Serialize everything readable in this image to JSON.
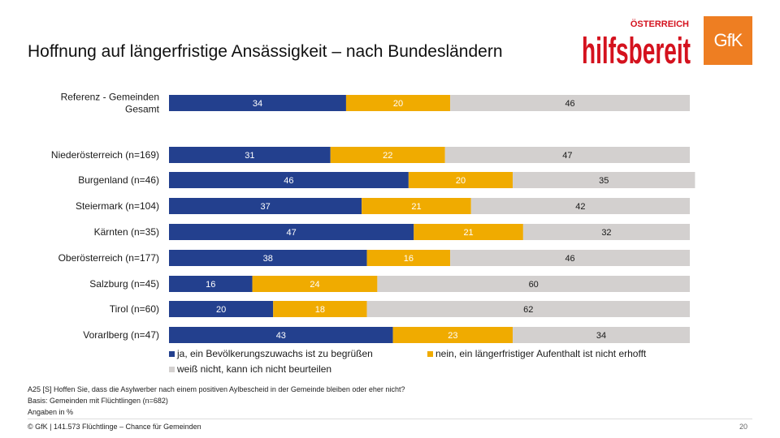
{
  "title": "Hoffnung auf längerfristige Ansässigkeit – nach Bundesländern",
  "logos": {
    "hilfsbereit_top": "ÖSTERREICH",
    "hilfsbereit_main": "hilfsbereit",
    "gfk": "GfK"
  },
  "notes": {
    "question": "A25 [S] Hoffen Sie, dass die Asylwerber nach einem positiven Aylbescheid in der Gemeinde bleiben oder eher nicht?",
    "basis": "Basis: Gemeinden mit Flüchtlingen (n=682)",
    "unit": "Angaben in %"
  },
  "footer": {
    "left": "© GfK | 141.573 Flüchtlinge – Chance für Gemeinden",
    "page": "20"
  },
  "colors": {
    "ja": "#23408e",
    "nein": "#f0ab00",
    "weiss": "#d3d0cf"
  },
  "chart_data": {
    "type": "bar",
    "orientation": "horizontal",
    "stacked": true,
    "categories": [
      [
        "Referenz - Gemeinden",
        "Gesamt"
      ],
      [
        "Niederösterreich (n=169)"
      ],
      [
        "Burgenland (n=46)"
      ],
      [
        "Steiermark (n=104)"
      ],
      [
        "Kärnten (n=35)"
      ],
      [
        "Oberösterreich (n=177)"
      ],
      [
        "Salzburg (n=45)"
      ],
      [
        "Tirol (n=60)"
      ],
      [
        "Vorarlberg (n=47)"
      ]
    ],
    "series": [
      {
        "name": "ja, ein Bevölkerungszuwachs ist zu begrüßen",
        "values": [
          34,
          31,
          46,
          37,
          47,
          38,
          16,
          20,
          43
        ]
      },
      {
        "name": "nein, ein längerfristiger Aufenthalt ist nicht erhofft",
        "values": [
          20,
          22,
          20,
          21,
          21,
          16,
          24,
          18,
          23
        ]
      },
      {
        "name": "weiß nicht, kann ich nicht beurteilen",
        "values": [
          46,
          47,
          35,
          42,
          32,
          46,
          60,
          62,
          34
        ]
      }
    ],
    "xlim": [
      0,
      100
    ],
    "grid": false,
    "legend_position": "bottom"
  }
}
